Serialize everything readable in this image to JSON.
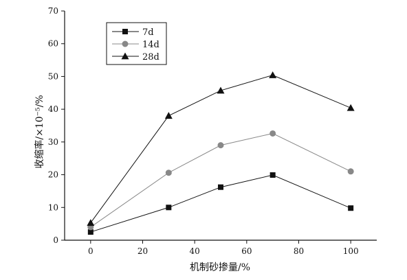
{
  "chart_data": {
    "type": "line",
    "xlabel": "机制砂掺量/%",
    "ylabel": "收缩率/×10⁻⁵/%",
    "xlim": [
      -10,
      110
    ],
    "ylim": [
      0,
      70
    ],
    "xticks": [
      0,
      20,
      40,
      60,
      80,
      100
    ],
    "yticks": [
      0,
      10,
      20,
      30,
      40,
      50,
      60,
      70
    ],
    "x": [
      0,
      30,
      50,
      70,
      100
    ],
    "series": [
      {
        "name": "7d",
        "values": [
          2.5,
          10,
          16.2,
          19.9,
          9.8
        ],
        "color": "#111111",
        "marker": "square"
      },
      {
        "name": "14d",
        "values": [
          4,
          20.6,
          29,
          32.6,
          21
        ],
        "color": "#888888",
        "marker": "circle"
      },
      {
        "name": "28d",
        "values": [
          5.3,
          38,
          45.7,
          50.4,
          40.4
        ],
        "color": "#111111",
        "marker": "triangle"
      }
    ],
    "legend_position": "top-left",
    "grid": false
  }
}
